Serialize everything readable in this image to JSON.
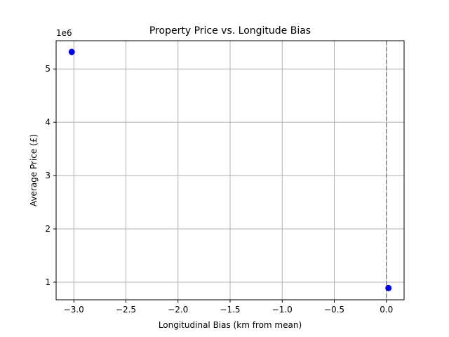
{
  "chart_data": {
    "type": "scatter",
    "title": "Property Price vs. Longitude Bias",
    "xlabel": "Longitudinal Bias (km from mean)",
    "ylabel": "Average Price (£)",
    "y_offset_label": "1e6",
    "xlim": [
      -3.17,
      0.17
    ],
    "ylim": [
      0.67,
      5.53
    ],
    "y_scale_factor": 1000000,
    "x_ticks": [
      -3.0,
      -2.5,
      -2.0,
      -1.5,
      -1.0,
      -0.5,
      0.0
    ],
    "x_tick_labels": [
      "−3.0",
      "−2.5",
      "−2.0",
      "−1.5",
      "−1.0",
      "−0.5",
      "0.0"
    ],
    "y_ticks": [
      1,
      2,
      3,
      4,
      5
    ],
    "y_tick_labels": [
      "1",
      "2",
      "3",
      "4",
      "5"
    ],
    "grid": true,
    "reference_line": {
      "orientation": "vertical",
      "x": 0.0,
      "style": "dashed",
      "color": "#808080"
    },
    "series": [
      {
        "color": "#0000ff",
        "points": [
          {
            "x": -3.02,
            "y": 5.32
          },
          {
            "x": 0.02,
            "y": 0.89
          }
        ]
      }
    ]
  }
}
